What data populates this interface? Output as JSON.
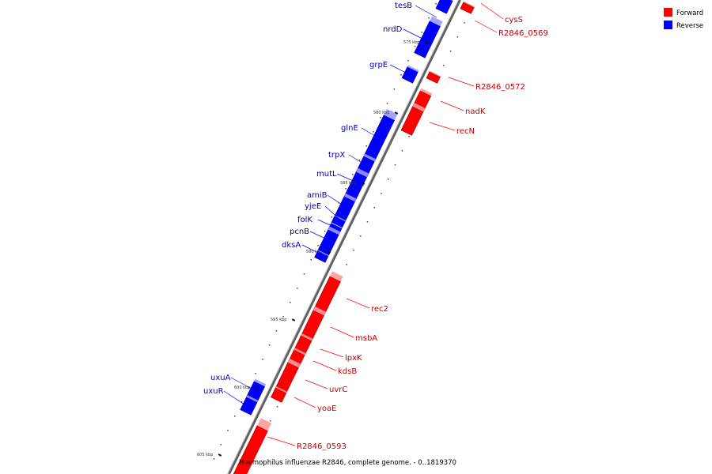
{
  "caption": "Haemophilus influenzae R2846, complete genome. - 0..1819370",
  "legend": [
    {
      "label": "Forward",
      "color": "#ff0000"
    },
    {
      "label": "Reverse",
      "color": "#0000ff"
    }
  ],
  "colors": {
    "forward": "#ff0000",
    "reverse": "#0000ff",
    "forward_label": "#c00000",
    "reverse_label": "#0000b0",
    "axis": "#808080"
  },
  "scale": {
    "ticks": [
      "575 kbp",
      "580 kbp",
      "585 kbp",
      "590 kbp",
      "595 kbp",
      "600 kbp",
      "605 kbp"
    ]
  },
  "genes": {
    "forward": [
      "cysS",
      "R2846_0569",
      "R2846_0572",
      "nadK",
      "recN",
      "rec2",
      "msbA",
      "lpxK",
      "kdsB",
      "uvrC",
      "yoaE",
      "R2846_0593"
    ],
    "reverse": [
      "tesB",
      "nrdD",
      "grpE",
      "glnE",
      "trpX",
      "mutL",
      "amiB",
      "yjeE",
      "folK",
      "pcnB",
      "dksA",
      "uxuA",
      "uxuR"
    ]
  }
}
